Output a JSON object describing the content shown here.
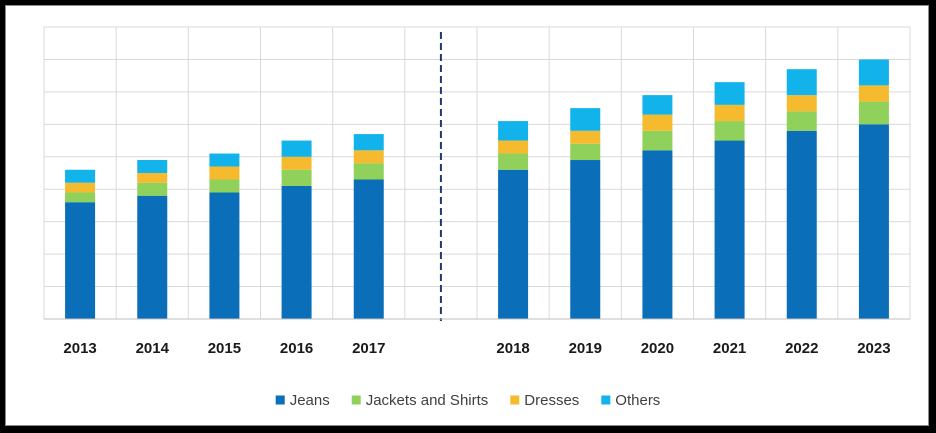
{
  "chart_data": {
    "type": "bar",
    "stacked": true,
    "title": "",
    "xlabel": "",
    "ylabel": "",
    "y_axis_labels_shown": false,
    "grid": "on",
    "legend_position": "bottom",
    "divider": "dashed vertical line between 2017 and 2018",
    "categories": [
      "2013",
      "2014",
      "2015",
      "2016",
      "2017",
      "2018",
      "2019",
      "2020",
      "2021",
      "2022",
      "2023"
    ],
    "ylim": [
      0,
      9
    ],
    "series": [
      {
        "name": "Jeans",
        "color": "#0a6eb8",
        "values": [
          3.6,
          3.8,
          3.9,
          4.1,
          4.3,
          4.6,
          4.9,
          5.2,
          5.5,
          5.8,
          6.0
        ]
      },
      {
        "name": "Jackets and Shirts",
        "color": "#8fd15a",
        "values": [
          0.3,
          0.4,
          0.4,
          0.5,
          0.5,
          0.5,
          0.5,
          0.6,
          0.6,
          0.6,
          0.7
        ]
      },
      {
        "name": "Dresses",
        "color": "#f6ba2f",
        "values": [
          0.3,
          0.3,
          0.4,
          0.4,
          0.4,
          0.4,
          0.4,
          0.5,
          0.5,
          0.5,
          0.5
        ]
      },
      {
        "name": "Others",
        "color": "#12b3ea",
        "values": [
          0.4,
          0.4,
          0.4,
          0.5,
          0.5,
          0.6,
          0.7,
          0.6,
          0.7,
          0.8,
          0.8
        ]
      }
    ]
  }
}
